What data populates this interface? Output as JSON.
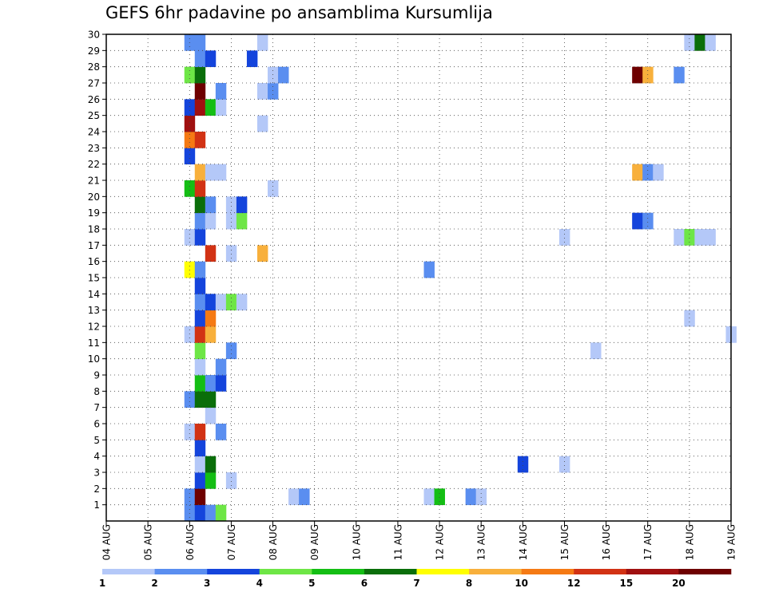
{
  "chart_data": {
    "type": "heatmap",
    "title": "GEFS 6hr padavine po ansamblima Kursumlija",
    "x_ticks": [
      "04 AUG",
      "05 AUG",
      "06 AUG",
      "07 AUG",
      "08 AUG",
      "09 AUG",
      "10 AUG",
      "11 AUG",
      "12 AUG",
      "13 AUG",
      "14 AUG",
      "15 AUG",
      "16 AUG",
      "17 AUG",
      "18 AUG",
      "19 AUG"
    ],
    "y_ticks": [
      1,
      2,
      3,
      4,
      5,
      6,
      7,
      8,
      9,
      10,
      11,
      12,
      13,
      14,
      15,
      16,
      17,
      18,
      19,
      20,
      21,
      22,
      23,
      24,
      25,
      26,
      27,
      28,
      29,
      30
    ],
    "x_range": [
      "04 AUG 00Z",
      "19 AUG 00Z"
    ],
    "y_range": [
      0,
      30
    ],
    "grid": true,
    "colorbar": {
      "labels": [
        "1",
        "2",
        "3",
        "4",
        "5",
        "6",
        "7",
        "8",
        "10",
        "12",
        "15",
        "20"
      ],
      "colors": [
        "#b4c8f8",
        "#5a8ef0",
        "#1444dc",
        "#6ee646",
        "#14be14",
        "#0a6e0a",
        "#ffff00",
        "#f8b03c",
        "#f57a14",
        "#d23214",
        "#a01010",
        "#6e0000"
      ]
    },
    "cells": [
      {
        "m": 0,
        "t": "06 AUG 00Z",
        "bin": 1
      },
      {
        "m": 0,
        "t": "06 AUG 06Z",
        "bin": 2
      },
      {
        "m": 0,
        "t": "06 AUG 12Z",
        "bin": 1
      },
      {
        "m": 0,
        "t": "06 AUG 18Z",
        "bin": 3
      },
      {
        "m": 1,
        "t": "06 AUG 00Z",
        "bin": 1
      },
      {
        "m": 1,
        "t": "06 AUG 06Z",
        "bin": 11
      },
      {
        "m": 1,
        "t": "08 AUG 12Z",
        "bin": 0
      },
      {
        "m": 1,
        "t": "08 AUG 18Z",
        "bin": 1
      },
      {
        "m": 1,
        "t": "11 AUG 18Z",
        "bin": 0
      },
      {
        "m": 1,
        "t": "12 AUG 00Z",
        "bin": 4
      },
      {
        "m": 1,
        "t": "12 AUG 18Z",
        "bin": 1
      },
      {
        "m": 1,
        "t": "13 AUG 00Z",
        "bin": 0
      },
      {
        "m": 2,
        "t": "06 AUG 06Z",
        "bin": 2
      },
      {
        "m": 2,
        "t": "06 AUG 12Z",
        "bin": 4
      },
      {
        "m": 2,
        "t": "07 AUG 00Z",
        "bin": 0
      },
      {
        "m": 3,
        "t": "06 AUG 06Z",
        "bin": 0
      },
      {
        "m": 3,
        "t": "06 AUG 12Z",
        "bin": 5
      },
      {
        "m": 3,
        "t": "14 AUG 00Z",
        "bin": 2
      },
      {
        "m": 3,
        "t": "15 AUG 00Z",
        "bin": 0
      },
      {
        "m": 4,
        "t": "06 AUG 06Z",
        "bin": 2
      },
      {
        "m": 5,
        "t": "06 AUG 00Z",
        "bin": 0
      },
      {
        "m": 5,
        "t": "06 AUG 06Z",
        "bin": 9
      },
      {
        "m": 5,
        "t": "06 AUG 18Z",
        "bin": 1
      },
      {
        "m": 6,
        "t": "06 AUG 12Z",
        "bin": 0
      },
      {
        "m": 7,
        "t": "06 AUG 00Z",
        "bin": 1
      },
      {
        "m": 7,
        "t": "06 AUG 06Z",
        "bin": 5
      },
      {
        "m": 7,
        "t": "06 AUG 12Z",
        "bin": 5
      },
      {
        "m": 8,
        "t": "06 AUG 06Z",
        "bin": 4
      },
      {
        "m": 8,
        "t": "06 AUG 12Z",
        "bin": 1
      },
      {
        "m": 8,
        "t": "06 AUG 18Z",
        "bin": 2
      },
      {
        "m": 9,
        "t": "06 AUG 06Z",
        "bin": 0
      },
      {
        "m": 9,
        "t": "06 AUG 18Z",
        "bin": 1
      },
      {
        "m": 10,
        "t": "06 AUG 06Z",
        "bin": 3
      },
      {
        "m": 10,
        "t": "07 AUG 00Z",
        "bin": 1
      },
      {
        "m": 10,
        "t": "15 AUG 18Z",
        "bin": 0
      },
      {
        "m": 11,
        "t": "06 AUG 00Z",
        "bin": 0
      },
      {
        "m": 11,
        "t": "06 AUG 06Z",
        "bin": 9
      },
      {
        "m": 11,
        "t": "06 AUG 12Z",
        "bin": 7
      },
      {
        "m": 11,
        "t": "19 AUG 00Z",
        "bin": 0
      },
      {
        "m": 12,
        "t": "06 AUG 06Z",
        "bin": 2
      },
      {
        "m": 12,
        "t": "06 AUG 12Z",
        "bin": 8
      },
      {
        "m": 12,
        "t": "18 AUG 00Z",
        "bin": 0
      },
      {
        "m": 13,
        "t": "06 AUG 06Z",
        "bin": 1
      },
      {
        "m": 13,
        "t": "06 AUG 12Z",
        "bin": 2
      },
      {
        "m": 13,
        "t": "06 AUG 18Z",
        "bin": 0
      },
      {
        "m": 13,
        "t": "07 AUG 00Z",
        "bin": 3
      },
      {
        "m": 13,
        "t": "07 AUG 06Z",
        "bin": 0
      },
      {
        "m": 14,
        "t": "06 AUG 06Z",
        "bin": 2
      },
      {
        "m": 15,
        "t": "06 AUG 00Z",
        "bin": 6
      },
      {
        "m": 15,
        "t": "06 AUG 06Z",
        "bin": 1
      },
      {
        "m": 15,
        "t": "11 AUG 18Z",
        "bin": 1
      },
      {
        "m": 16,
        "t": "06 AUG 12Z",
        "bin": 9
      },
      {
        "m": 16,
        "t": "07 AUG 00Z",
        "bin": 0
      },
      {
        "m": 16,
        "t": "07 AUG 18Z",
        "bin": 7
      },
      {
        "m": 17,
        "t": "06 AUG 00Z",
        "bin": 0
      },
      {
        "m": 17,
        "t": "06 AUG 06Z",
        "bin": 2
      },
      {
        "m": 17,
        "t": "15 AUG 00Z",
        "bin": 0
      },
      {
        "m": 17,
        "t": "17 AUG 18Z",
        "bin": 0
      },
      {
        "m": 17,
        "t": "18 AUG 00Z",
        "bin": 3
      },
      {
        "m": 17,
        "t": "18 AUG 06Z",
        "bin": 0
      },
      {
        "m": 17,
        "t": "18 AUG 12Z",
        "bin": 0
      },
      {
        "m": 18,
        "t": "06 AUG 06Z",
        "bin": 1
      },
      {
        "m": 18,
        "t": "06 AUG 12Z",
        "bin": 0
      },
      {
        "m": 18,
        "t": "07 AUG 00Z",
        "bin": 0
      },
      {
        "m": 18,
        "t": "07 AUG 06Z",
        "bin": 3
      },
      {
        "m": 18,
        "t": "16 AUG 18Z",
        "bin": 2
      },
      {
        "m": 18,
        "t": "17 AUG 00Z",
        "bin": 1
      },
      {
        "m": 19,
        "t": "06 AUG 06Z",
        "bin": 5
      },
      {
        "m": 19,
        "t": "06 AUG 12Z",
        "bin": 1
      },
      {
        "m": 19,
        "t": "07 AUG 00Z",
        "bin": 0
      },
      {
        "m": 19,
        "t": "07 AUG 06Z",
        "bin": 2
      },
      {
        "m": 20,
        "t": "06 AUG 00Z",
        "bin": 4
      },
      {
        "m": 20,
        "t": "06 AUG 06Z",
        "bin": 9
      },
      {
        "m": 20,
        "t": "08 AUG 00Z",
        "bin": 0
      },
      {
        "m": 21,
        "t": "06 AUG 06Z",
        "bin": 7
      },
      {
        "m": 21,
        "t": "06 AUG 12Z",
        "bin": 0
      },
      {
        "m": 21,
        "t": "06 AUG 18Z",
        "bin": 0
      },
      {
        "m": 21,
        "t": "16 AUG 18Z",
        "bin": 7
      },
      {
        "m": 21,
        "t": "17 AUG 00Z",
        "bin": 1
      },
      {
        "m": 21,
        "t": "17 AUG 06Z",
        "bin": 0
      },
      {
        "m": 22,
        "t": "06 AUG 00Z",
        "bin": 2
      },
      {
        "m": 23,
        "t": "06 AUG 00Z",
        "bin": 8
      },
      {
        "m": 23,
        "t": "06 AUG 06Z",
        "bin": 9
      },
      {
        "m": 24,
        "t": "06 AUG 00Z",
        "bin": 10
      },
      {
        "m": 24,
        "t": "07 AUG 18Z",
        "bin": 0
      },
      {
        "m": 25,
        "t": "06 AUG 00Z",
        "bin": 2
      },
      {
        "m": 25,
        "t": "06 AUG 06Z",
        "bin": 10
      },
      {
        "m": 25,
        "t": "06 AUG 12Z",
        "bin": 4
      },
      {
        "m": 25,
        "t": "06 AUG 18Z",
        "bin": 0
      },
      {
        "m": 26,
        "t": "06 AUG 06Z",
        "bin": 11
      },
      {
        "m": 26,
        "t": "06 AUG 18Z",
        "bin": 1
      },
      {
        "m": 26,
        "t": "07 AUG 18Z",
        "bin": 0
      },
      {
        "m": 26,
        "t": "08 AUG 00Z",
        "bin": 1
      },
      {
        "m": 27,
        "t": "06 AUG 00Z",
        "bin": 3
      },
      {
        "m": 27,
        "t": "06 AUG 06Z",
        "bin": 5
      },
      {
        "m": 27,
        "t": "08 AUG 00Z",
        "bin": 0
      },
      {
        "m": 27,
        "t": "08 AUG 06Z",
        "bin": 1
      },
      {
        "m": 27,
        "t": "16 AUG 18Z",
        "bin": 11
      },
      {
        "m": 27,
        "t": "17 AUG 00Z",
        "bin": 7
      },
      {
        "m": 27,
        "t": "17 AUG 18Z",
        "bin": 1
      },
      {
        "m": 28,
        "t": "06 AUG 06Z",
        "bin": 1
      },
      {
        "m": 28,
        "t": "06 AUG 12Z",
        "bin": 2
      },
      {
        "m": 28,
        "t": "07 AUG 12Z",
        "bin": 2
      },
      {
        "m": 29,
        "t": "06 AUG 00Z",
        "bin": 1
      },
      {
        "m": 29,
        "t": "06 AUG 06Z",
        "bin": 1
      },
      {
        "m": 29,
        "t": "07 AUG 18Z",
        "bin": 0
      },
      {
        "m": 29,
        "t": "18 AUG 00Z",
        "bin": 0
      },
      {
        "m": 29,
        "t": "18 AUG 06Z",
        "bin": 5
      },
      {
        "m": 29,
        "t": "18 AUG 12Z",
        "bin": 0
      }
    ]
  }
}
